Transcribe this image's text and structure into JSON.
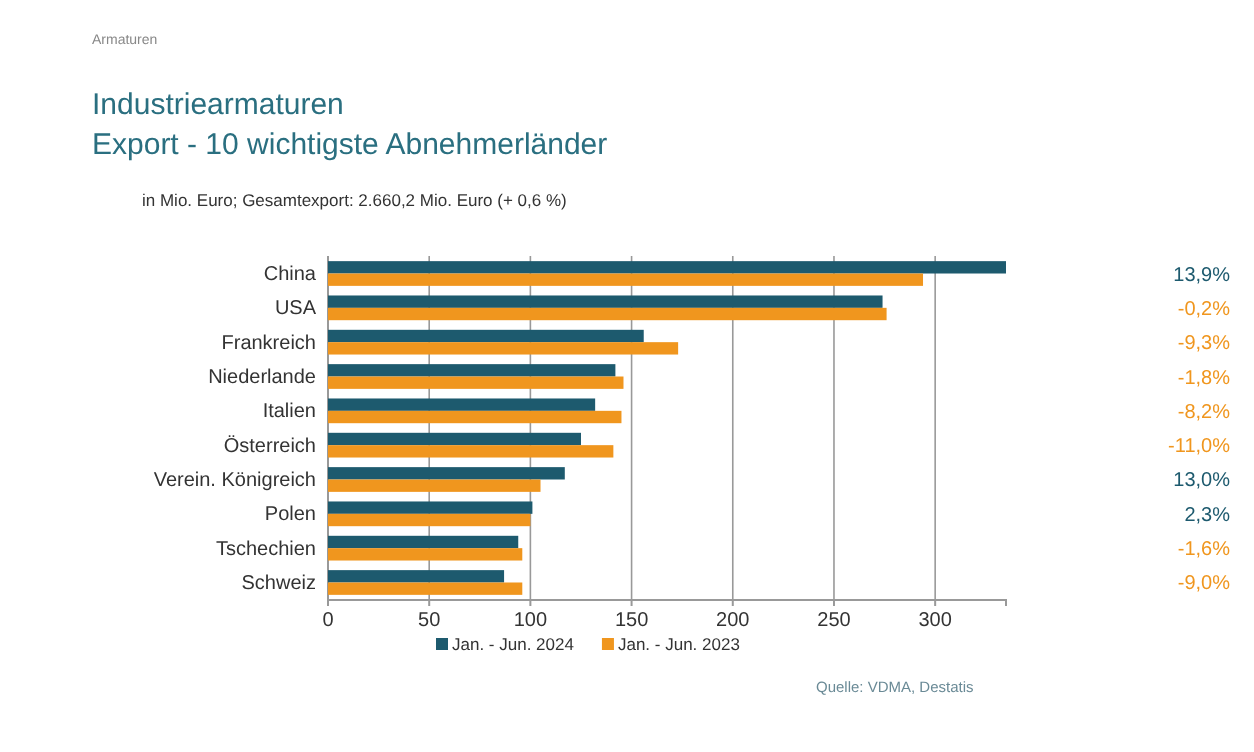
{
  "chart_data": {
    "type": "bar",
    "orientation": "horizontal",
    "title": "Industriearmaturen\nExport - 10 wichtigste Abnehmerländer",
    "subtitle": "in Mio. Euro; Gesamtexport: 2.660,2 Mio. Euro (+ 0,6 %)",
    "categories": [
      "China",
      "USA",
      "Frankreich",
      "Niederlande",
      "Italien",
      "Österreich",
      "Verein. Königreich",
      "Polen",
      "Tschechien",
      "Schweiz"
    ],
    "series": [
      {
        "name": "Jan. - Jun. 2024",
        "color": "#1d5a6e",
        "values": [
          335,
          274,
          156,
          142,
          132,
          125,
          117,
          101,
          94,
          87
        ]
      },
      {
        "name": "Jan. - Jun. 2023",
        "color": "#f0961e",
        "values": [
          294,
          276,
          173,
          146,
          145,
          141,
          105,
          100,
          96,
          96
        ]
      }
    ],
    "xlim": [
      0,
      335
    ],
    "xticks": [
      0,
      50,
      100,
      150,
      200,
      250,
      300
    ],
    "grid": "x",
    "legend": "bottom",
    "annotations": [
      "Armaturen",
      "13,9%",
      "-0,2%",
      "-9,3%",
      "-1,8%",
      "-8,2%",
      "-11,0%",
      "13,0%",
      "2,3%",
      "-1,6%",
      "-9,0%",
      "Quelle: VDMA, Destatis"
    ]
  }
}
